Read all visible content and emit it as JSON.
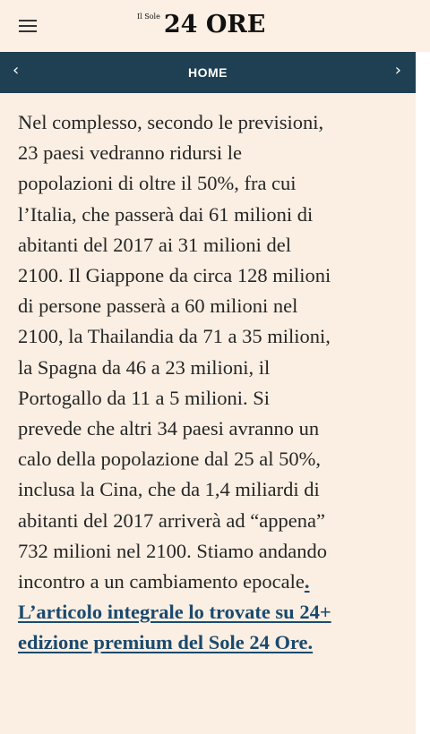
{
  "header": {
    "logo_small": "Il Sole",
    "logo_big": "24 ORE"
  },
  "nav": {
    "title": "HOME",
    "prev_icon": "chevron-left-icon",
    "next_icon": "chevron-right-icon"
  },
  "article": {
    "lines": [
      "Nel complesso, secondo le previsioni,",
      "23 paesi vedranno ridursi le",
      "popolazioni di oltre il 50%, fra cui",
      "l’Italia, che passerà dai 61 milioni di",
      "abitanti del 2017 ai 31 milioni del",
      "2100. Il Giappone da circa 128 milioni",
      "di persone passerà a 60 milioni nel",
      "2100, la Thailandia da 71 a 35 milioni,",
      "la Spagna da 46 a 23 milioni, il",
      "Portogallo da 11 a 5 milioni. Si",
      "prevede che altri 34 paesi avranno un",
      "calo della popolazione dal 25 al 50%,",
      "inclusa la Cina, che da 1,4 miliardi di",
      "abitanti del 2017 arriverà ad “appena”",
      "732 milioni nel 2100. Stiamo andando"
    ],
    "last_line_text": "incontro a un cambiamento epocale",
    "last_line_link": ".",
    "link_line_1": "L’articolo integrale lo trovate su 24+",
    "link_line_2": "edizione premium del Sole 24 Ore."
  }
}
